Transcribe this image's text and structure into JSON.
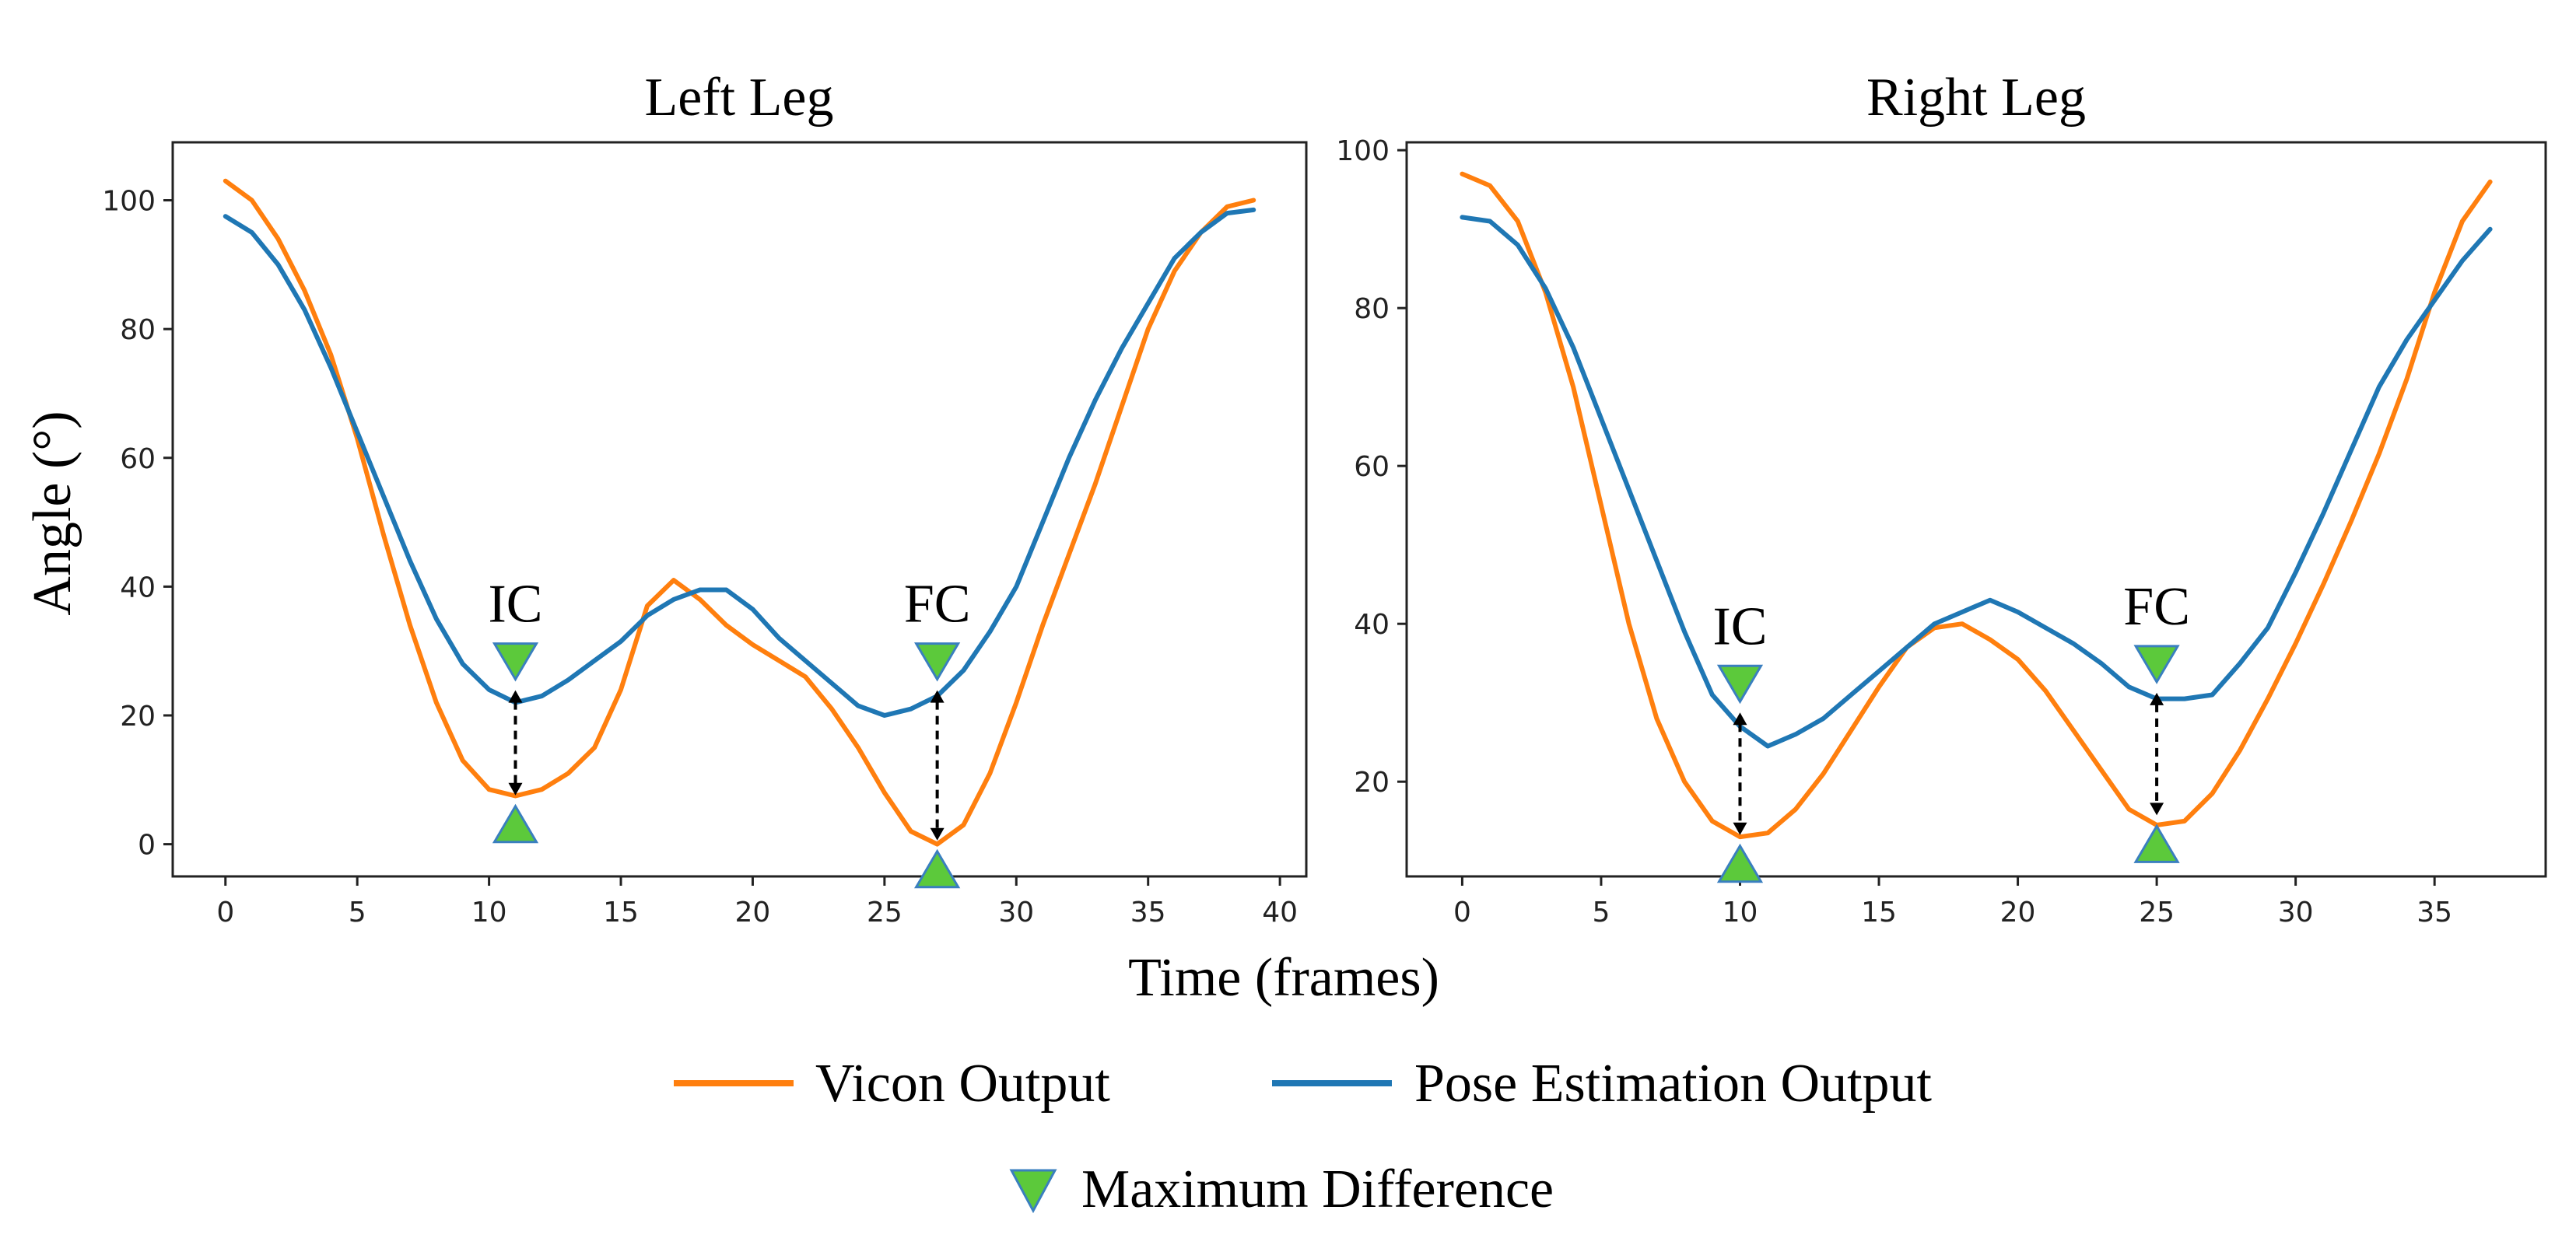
{
  "figure": {
    "xlabel": "Time (frames)",
    "ylabel": "Angle (°)"
  },
  "legend": {
    "vicon": "Vicon Output",
    "pose": "Pose Estimation Output",
    "marker": "Maximum Difference"
  },
  "colors": {
    "vicon": "#ff7f0e",
    "pose": "#1f77b4",
    "marker_fill": "#5cc93b",
    "marker_edge": "#3a7fbf"
  },
  "chart_data": [
    {
      "type": "line",
      "title": "Left Leg",
      "xlabel": "Time (frames)",
      "ylabel": "Angle (°)",
      "xlim": [
        -2,
        41
      ],
      "ylim": [
        -5,
        109
      ],
      "xticks": [
        0,
        5,
        10,
        15,
        20,
        25,
        30,
        35,
        40
      ],
      "yticks": [
        0,
        20,
        40,
        60,
        80,
        100
      ],
      "series": [
        {
          "name": "Vicon Output",
          "key": "vicon",
          "x": [
            0,
            1,
            2,
            3,
            4,
            5,
            6,
            7,
            8,
            9,
            10,
            11,
            12,
            13,
            14,
            15,
            16,
            17,
            18,
            19,
            20,
            21,
            22,
            23,
            24,
            25,
            26,
            27,
            28,
            29,
            30,
            31,
            32,
            33,
            34,
            35,
            36,
            37,
            38,
            39
          ],
          "values": [
            103,
            100,
            94,
            86,
            76,
            63,
            48,
            34,
            22,
            13,
            8.5,
            7.5,
            8.5,
            11,
            15,
            24,
            37,
            41,
            38,
            34,
            31,
            28.5,
            26,
            21,
            15,
            8,
            2,
            0,
            3,
            11,
            22,
            34,
            45,
            56,
            68,
            80,
            89,
            95,
            99,
            100
          ]
        },
        {
          "name": "Pose Estimation Output",
          "key": "pose",
          "x": [
            0,
            1,
            2,
            3,
            4,
            5,
            6,
            7,
            8,
            9,
            10,
            11,
            12,
            13,
            14,
            15,
            16,
            17,
            18,
            19,
            20,
            21,
            22,
            23,
            24,
            25,
            26,
            27,
            28,
            29,
            30,
            31,
            32,
            33,
            34,
            35,
            36,
            37,
            38,
            39
          ],
          "values": [
            97.5,
            95,
            90,
            83,
            74,
            64,
            54,
            44,
            35,
            28,
            24,
            22,
            23,
            25.5,
            28.5,
            31.5,
            35.5,
            38,
            39.5,
            39.5,
            36.5,
            32,
            28.5,
            25,
            21.5,
            20,
            21,
            23,
            27,
            33,
            40,
            50,
            60,
            69,
            77,
            84,
            91,
            95,
            98,
            98.5
          ]
        }
      ],
      "markers": [
        {
          "label": "IC",
          "x": 11,
          "top": 28.5,
          "bottom": 3
        },
        {
          "label": "FC",
          "x": 27,
          "top": 28.5,
          "bottom": -4
        }
      ]
    },
    {
      "type": "line",
      "title": "Right Leg",
      "xlabel": "Time (frames)",
      "ylabel": "",
      "xlim": [
        -2,
        39
      ],
      "ylim": [
        8,
        101
      ],
      "xticks": [
        0,
        5,
        10,
        15,
        20,
        25,
        30,
        35
      ],
      "yticks": [
        20,
        40,
        60,
        80,
        100
      ],
      "series": [
        {
          "name": "Vicon Output",
          "key": "vicon",
          "x": [
            0,
            1,
            2,
            3,
            4,
            5,
            6,
            7,
            8,
            9,
            10,
            11,
            12,
            13,
            14,
            15,
            16,
            17,
            18,
            19,
            20,
            21,
            22,
            23,
            24,
            25,
            26,
            27,
            28,
            29,
            30,
            31,
            32,
            33,
            34,
            35,
            36,
            37
          ],
          "values": [
            97,
            95.5,
            91,
            82,
            70,
            55,
            40,
            28,
            20,
            15,
            13,
            13.5,
            16.5,
            21,
            26.5,
            32,
            37,
            39.5,
            40,
            38,
            35.5,
            31.5,
            26.5,
            21.5,
            16.5,
            14.5,
            15,
            18.5,
            24,
            30.5,
            37.5,
            45,
            53,
            61.5,
            71,
            82,
            91,
            96
          ]
        },
        {
          "name": "Pose Estimation Output",
          "key": "pose",
          "x": [
            0,
            1,
            2,
            3,
            4,
            5,
            6,
            7,
            8,
            9,
            10,
            11,
            12,
            13,
            14,
            15,
            16,
            17,
            18,
            19,
            20,
            21,
            22,
            23,
            24,
            25,
            26,
            27,
            28,
            29,
            30,
            31,
            32,
            33,
            34,
            35,
            36,
            37
          ],
          "values": [
            91.5,
            91,
            88,
            82.5,
            75,
            66,
            57,
            48,
            39,
            31,
            27,
            24.5,
            26,
            28,
            31,
            34,
            37,
            40,
            41.5,
            43,
            41.5,
            39.5,
            37.5,
            35,
            32,
            30.5,
            30.5,
            31,
            35,
            39.5,
            46.5,
            54,
            62,
            70,
            76,
            81,
            86,
            90
          ]
        }
      ],
      "markers": [
        {
          "label": "IC",
          "x": 10,
          "top": 32.5,
          "bottom": 9.5
        },
        {
          "label": "FC",
          "x": 25,
          "top": 35,
          "bottom": 12
        }
      ]
    }
  ]
}
